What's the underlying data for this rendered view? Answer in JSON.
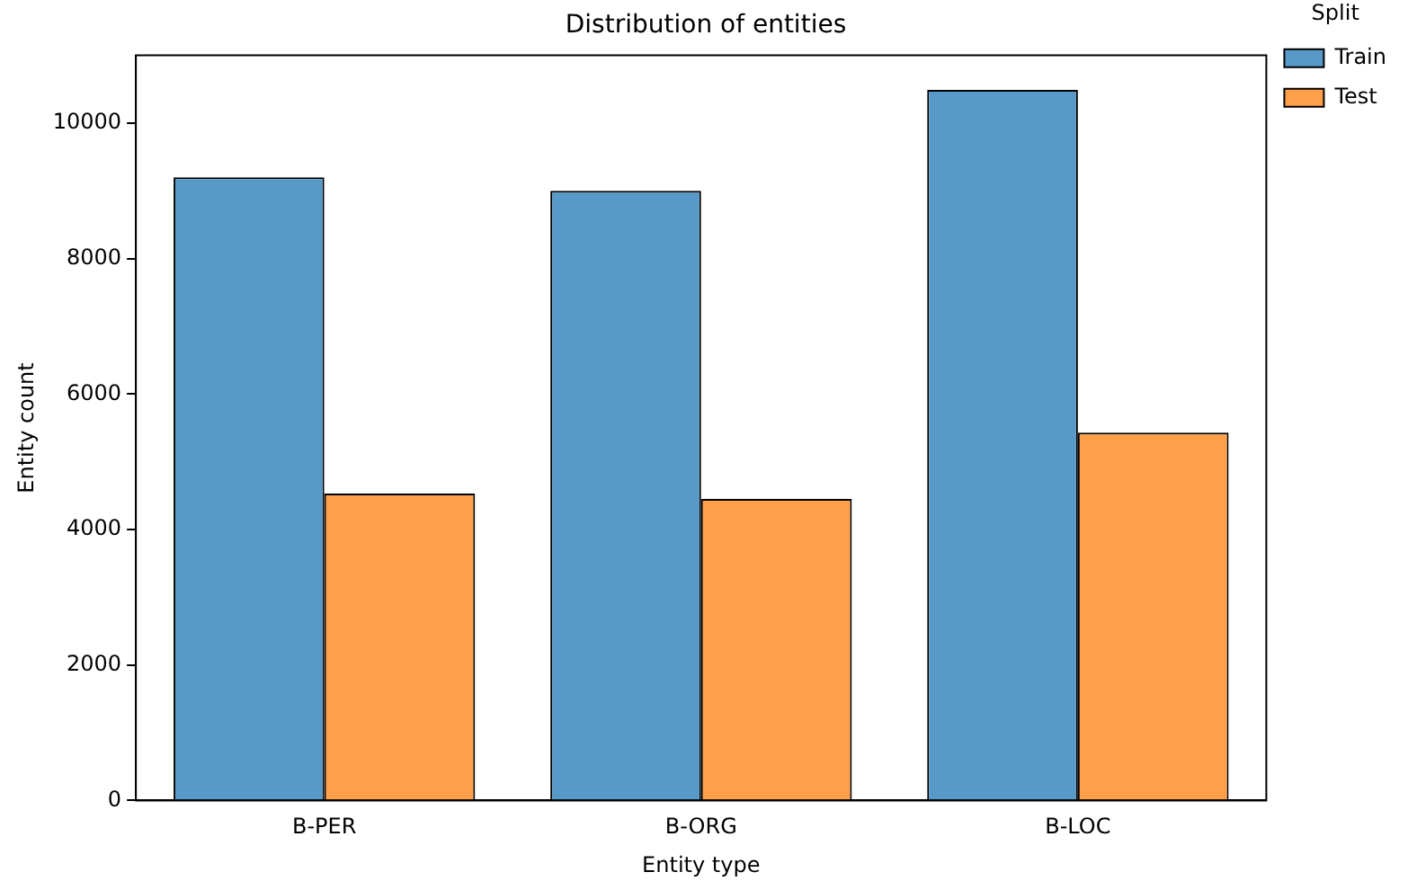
{
  "chart_data": {
    "type": "bar",
    "title": "Distribution of entities",
    "xlabel": "Entity type",
    "ylabel": "Entity count",
    "legend_title": "Split",
    "categories": [
      "B-PER",
      "B-ORG",
      "B-LOC"
    ],
    "series": [
      {
        "name": "Train",
        "color": "#5799c7",
        "values": [
          9200,
          9000,
          10490
        ]
      },
      {
        "name": "Test",
        "color": "#ff9f4a",
        "values": [
          4530,
          4450,
          5430
        ]
      }
    ],
    "ylim": [
      0,
      11000
    ],
    "yticks": [
      0,
      2000,
      4000,
      6000,
      8000,
      10000
    ],
    "grid": false,
    "legend": "top right"
  }
}
